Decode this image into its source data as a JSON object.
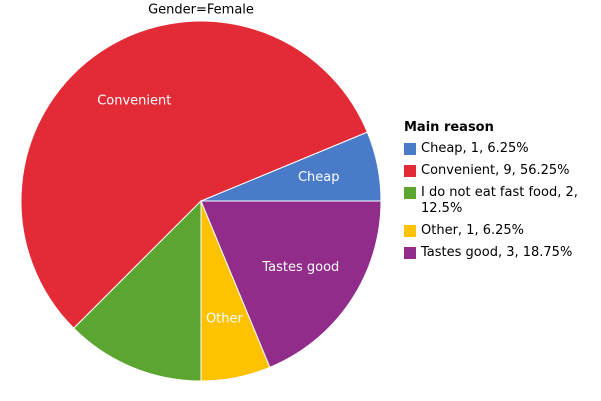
{
  "chart_data": {
    "type": "pie",
    "title": "Gender=Female",
    "legend_title": "Main reason",
    "legend_labels": [
      "Cheap, 1, 6.25%",
      "Convenient, 9, 56.25%",
      "I do not eat fast food, 2, 12.5%",
      "Other, 1, 6.25%",
      "Tastes good, 3, 18.75%"
    ],
    "slice_labels": [
      "Cheap",
      "Convenient",
      null,
      "Other",
      "Tastes good"
    ],
    "values": [
      6.25,
      56.25,
      12.5,
      6.25,
      18.75
    ],
    "colors": [
      "#4a7bc8",
      "#e32a37",
      "#5aa631",
      "#fec200",
      "#912c8a"
    ]
  }
}
